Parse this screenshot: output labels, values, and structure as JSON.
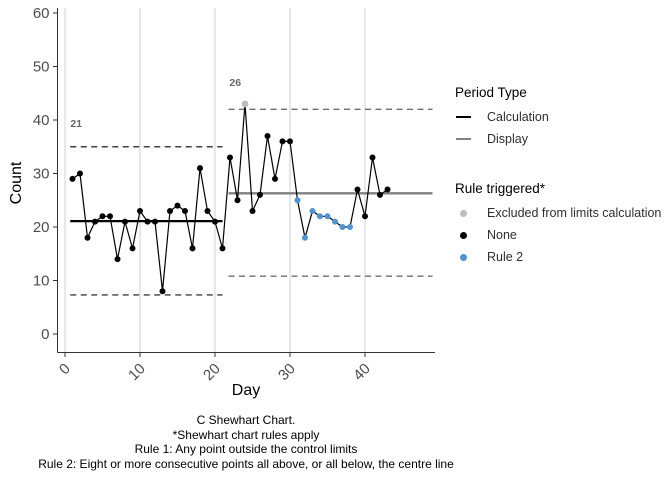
{
  "colors": {
    "point_none": "#000000",
    "point_rule2": "#4f94cd",
    "point_excluded": "#bdbdbd",
    "data_line": "#000000",
    "cl_calculation": "#000000",
    "cl_display": "#808080",
    "limit_dash_calculation": "#3f3f3f",
    "limit_dash_display": "#6e6e6e",
    "gridline": "#d9d9d9",
    "axis_line": "#333333",
    "tick_label": "#4d4d4d",
    "annotation": "#666666"
  },
  "chart_data": {
    "type": "line",
    "chart_kind": "c-shewhart-control-chart",
    "xlabel": "Day",
    "ylabel": "Count",
    "ylim": [
      0,
      60
    ],
    "xlim": [
      0,
      49
    ],
    "yticks": [
      0,
      10,
      20,
      30,
      40,
      50,
      60
    ],
    "xticks": [
      0,
      10,
      20,
      30,
      40
    ],
    "grid": "vertical-major-only",
    "legend_position": "right",
    "x": [
      1,
      2,
      3,
      4,
      5,
      6,
      7,
      8,
      9,
      10,
      11,
      12,
      13,
      14,
      15,
      16,
      17,
      18,
      19,
      20,
      21,
      22,
      23,
      24,
      25,
      26,
      27,
      28,
      29,
      30,
      31,
      32,
      33,
      34,
      35,
      36,
      37,
      38,
      39,
      40,
      41,
      42,
      43
    ],
    "values": [
      29,
      30,
      18,
      21,
      22,
      22,
      14,
      21,
      16,
      23,
      21,
      21,
      8,
      23,
      24,
      23,
      16,
      31,
      23,
      21,
      16,
      33,
      25,
      43,
      23,
      26,
      37,
      29,
      36,
      36,
      25,
      18,
      23,
      22,
      22,
      21,
      20,
      20,
      27,
      22,
      33,
      26,
      27
    ],
    "rules": [
      "none",
      "none",
      "none",
      "none",
      "none",
      "none",
      "none",
      "none",
      "none",
      "none",
      "none",
      "none",
      "none",
      "none",
      "none",
      "none",
      "none",
      "none",
      "none",
      "none",
      "none",
      "none",
      "none",
      "excluded",
      "none",
      "none",
      "none",
      "none",
      "none",
      "none",
      "rule2",
      "rule2",
      "rule2",
      "rule2",
      "rule2",
      "rule2",
      "rule2",
      "rule2",
      "none",
      "none",
      "none",
      "none",
      "none"
    ],
    "periods": [
      {
        "type": "calculation",
        "label": "21",
        "cl": 21.1,
        "ucl": 35.0,
        "lcl": 7.3,
        "draw_from_day": 0.7,
        "draw_to_day": 21.0,
        "label_at": {
          "day": 1.5,
          "value": 38.7
        }
      },
      {
        "type": "display",
        "label": "26",
        "cl": 26.3,
        "ucl": 42.0,
        "lcl": 10.8,
        "draw_from_day": 21.8,
        "draw_to_day": 49.0,
        "label_at": {
          "day": 22.7,
          "value": 46.4
        }
      }
    ]
  },
  "legend": {
    "period_type": {
      "title": "Period Type",
      "items": [
        {
          "label": "Calculation",
          "swatch": "line",
          "color": "#000000"
        },
        {
          "label": "Display",
          "swatch": "line",
          "color": "#808080"
        }
      ]
    },
    "rule_triggered": {
      "title": "Rule triggered*",
      "items": [
        {
          "label": "Excluded from limits calculation",
          "swatch": "dot",
          "color": "#bdbdbd"
        },
        {
          "label": "None",
          "swatch": "dot",
          "color": "#000000"
        },
        {
          "label": "Rule 2",
          "swatch": "dot",
          "color": "#4f94cd"
        }
      ]
    }
  },
  "caption": {
    "lines": [
      "C Shewhart Chart.",
      "*Shewhart chart rules apply",
      "Rule 1: Any point outside the control limits",
      "Rule 2: Eight or more consecutive points all above, or all below, the centre line"
    ]
  }
}
